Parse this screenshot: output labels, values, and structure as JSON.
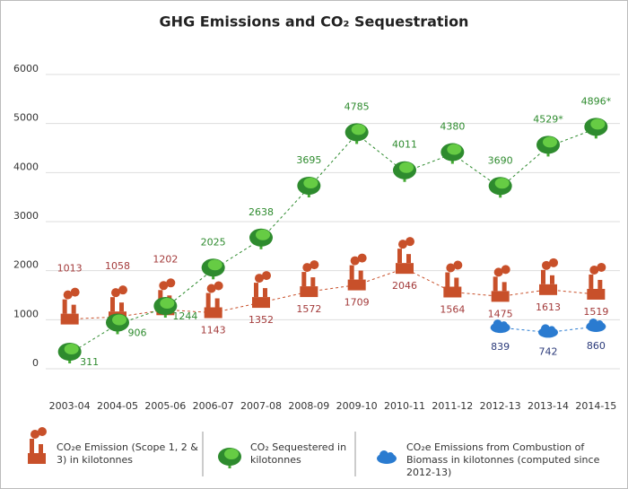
{
  "chart_data": {
    "type": "line",
    "title": "GHG Emissions and CO₂ Sequestration",
    "categories": [
      "2003-04",
      "2004-05",
      "2005-06",
      "2006-07",
      "2007-08",
      "2008-09",
      "2009-10",
      "2010-11",
      "2011-12",
      "2012-13",
      "2013-14",
      "2014-15"
    ],
    "series": [
      {
        "name": "CO₂e Emission (Scope 1, 2 & 3) in kilotonnes",
        "color": "#c8502a",
        "label_color": "#a33a3a",
        "values": [
          1013,
          1058,
          1202,
          1143,
          1352,
          1572,
          1709,
          2046,
          1564,
          1475,
          1613,
          1519
        ]
      },
      {
        "name": "CO₂ Sequestered in kilotonnes",
        "color": "#2e8b2e",
        "label_color": "#2e8b2e",
        "values": [
          311,
          906,
          1244,
          2025,
          2638,
          3695,
          4785,
          4011,
          4380,
          3690,
          4529,
          4896
        ],
        "value_labels": [
          "311",
          "906",
          "1244",
          "2025",
          "2638",
          "3695",
          "4785",
          "4011",
          "4380",
          "3690",
          "4529*",
          "4896*"
        ]
      },
      {
        "name": "CO₂e Emissions from Combustion of Biomass in kilotonnes (computed since 2012-13)",
        "color": "#2a7bd0",
        "label_color": "#2b3a7a",
        "values": [
          null,
          null,
          null,
          null,
          null,
          null,
          null,
          null,
          null,
          839,
          742,
          860
        ]
      }
    ],
    "ylim": [
      0,
      6000
    ],
    "yticks": [
      0,
      1000,
      2000,
      3000,
      4000,
      5000,
      6000
    ],
    "grid": true
  }
}
